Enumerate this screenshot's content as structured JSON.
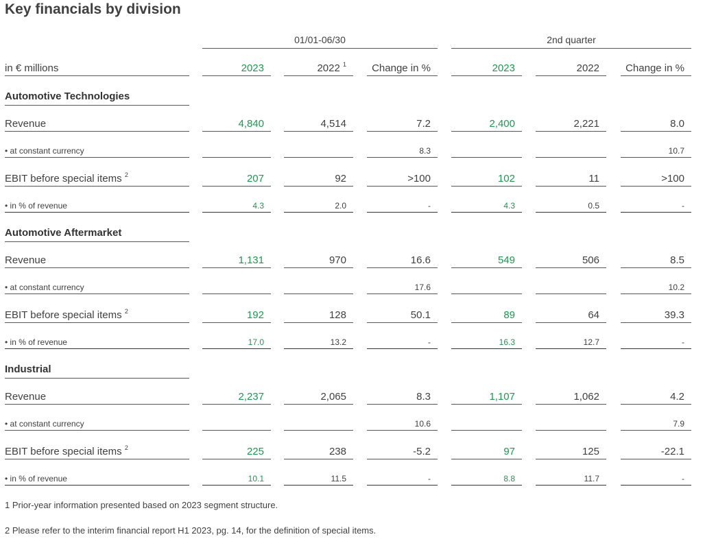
{
  "title": "Key financials by division",
  "groups": [
    "01/01-06/30",
    "2nd quarter"
  ],
  "header": {
    "unit_label": "in € millions",
    "cols": [
      "2023",
      "2022",
      "Change in %",
      "2023",
      "2022",
      "Change in %"
    ],
    "col2_footnote": "1"
  },
  "sections": [
    {
      "name": "Automotive Technologies",
      "rows": [
        {
          "label": "Revenue",
          "values": [
            "4,840",
            "4,514",
            "7.2",
            "2,400",
            "2,221",
            "8.0"
          ]
        },
        {
          "label": "• at constant currency",
          "values": [
            "",
            "",
            "8.3",
            "",
            "",
            "10.7"
          ]
        },
        {
          "label": "EBIT before special items",
          "footnote": "2",
          "values": [
            "207",
            "92",
            ">100",
            "102",
            "11",
            ">100"
          ]
        },
        {
          "label": "• in % of revenue",
          "values": [
            "4.3",
            "2.0",
            "-",
            "4.3",
            "0.5",
            "-"
          ]
        }
      ]
    },
    {
      "name": "Automotive Aftermarket",
      "rows": [
        {
          "label": "Revenue",
          "values": [
            "1,131",
            "970",
            "16.6",
            "549",
            "506",
            "8.5"
          ]
        },
        {
          "label": "• at constant currency",
          "values": [
            "",
            "",
            "17.6",
            "",
            "",
            "10.2"
          ]
        },
        {
          "label": "EBIT before special items",
          "footnote": "2",
          "values": [
            "192",
            "128",
            "50.1",
            "89",
            "64",
            "39.3"
          ]
        },
        {
          "label": "• in % of revenue",
          "values": [
            "17.0",
            "13.2",
            "-",
            "16.3",
            "12.7",
            "-"
          ]
        }
      ]
    },
    {
      "name": "Industrial",
      "rows": [
        {
          "label": "Revenue",
          "values": [
            "2,237",
            "2,065",
            "8.3",
            "1,107",
            "1,062",
            "4.2"
          ]
        },
        {
          "label": "• at constant currency",
          "values": [
            "",
            "",
            "10.6",
            "",
            "",
            "7.9"
          ]
        },
        {
          "label": "EBIT before special items",
          "footnote": "2",
          "values": [
            "225",
            "238",
            "-5.2",
            "97",
            "125",
            "-22.1"
          ]
        },
        {
          "label": "• in % of revenue",
          "values": [
            "10.1",
            "11.5",
            "-",
            "8.8",
            "11.7",
            "-"
          ]
        }
      ]
    }
  ],
  "footnotes": [
    "1 Prior-year information presented based on 2023 segment structure.",
    "2 Please refer to the interim financial report H1 2023, pg. 14, for the definition of special items."
  ],
  "colors": {
    "highlight": "#1a9a4e",
    "text": "#404040"
  }
}
